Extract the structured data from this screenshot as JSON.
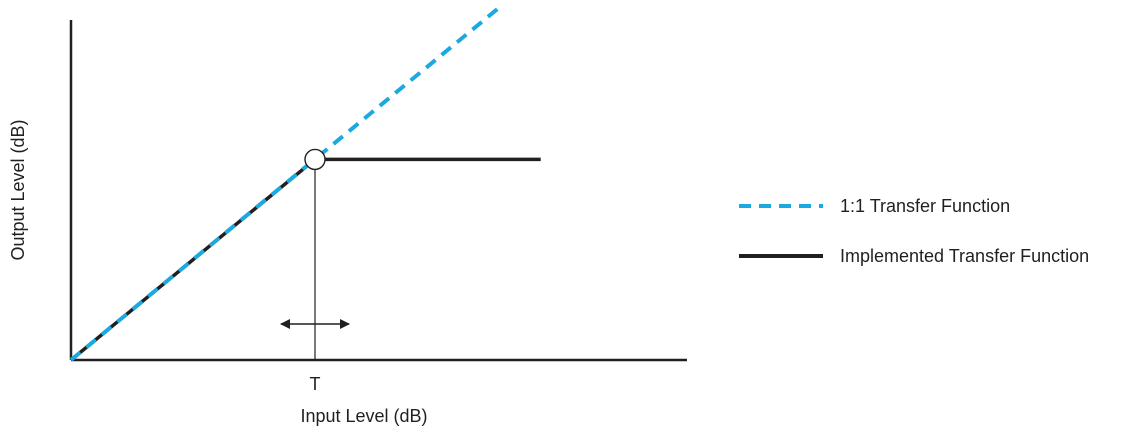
{
  "chart_data": {
    "type": "line",
    "title": "",
    "xlabel": "Input Level (dB)",
    "ylabel": "Output Level (dB)",
    "x_tick_labels": [
      "T"
    ],
    "xlim": [
      0,
      100
    ],
    "ylim": [
      0,
      100
    ],
    "grid": false,
    "legend_placement": "right",
    "threshold": 40,
    "series": [
      {
        "name": "1:1 Transfer Function",
        "style": "dashed",
        "color": "#1ba9e0",
        "points": [
          [
            0,
            0
          ],
          [
            70,
            99
          ]
        ]
      },
      {
        "name": "Implemented Transfer Function",
        "style": "solid",
        "color": "#231f20",
        "points": [
          [
            0,
            0
          ],
          [
            40,
            56.5
          ],
          [
            77,
            56.5
          ]
        ]
      }
    ],
    "annotations": {
      "knee_marker": "circle",
      "threshold_adjust_arrow": "double-headed horizontal arrow"
    }
  }
}
